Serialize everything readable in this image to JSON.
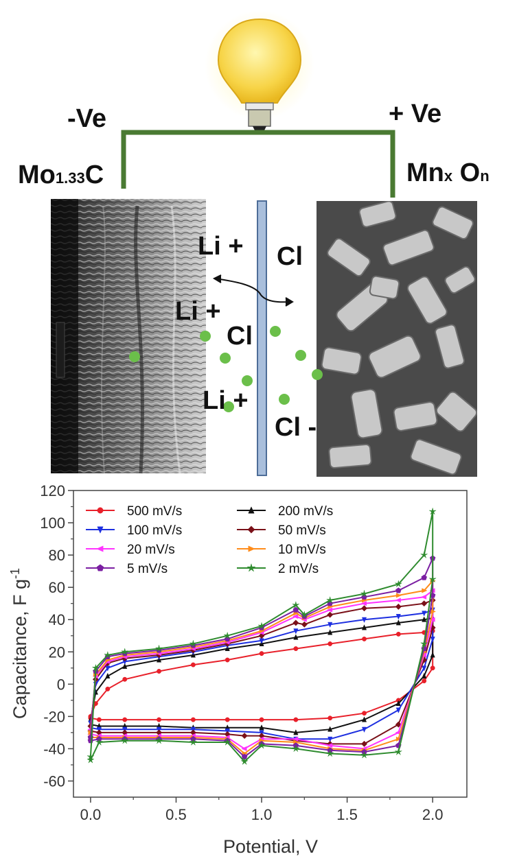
{
  "schematic": {
    "neg_terminal": "-Ve",
    "pos_terminal": "+ Ve",
    "neg_electrode": {
      "base": "Mo",
      "sub": "1.33",
      "tail": "C"
    },
    "pos_electrode": {
      "base": "Mn",
      "sub1": "x",
      "mid": " O",
      "sub2": "n"
    },
    "ions": [
      "Li +",
      "Li +",
      "Li +",
      "Cl",
      "Cl",
      "Cl -",
      "Cl -"
    ],
    "colors": {
      "wire": "#4a7a32",
      "ion": "#6bbf4a",
      "separator": "#a9bfdc"
    },
    "icons": [
      "light-bulb-icon",
      "double-arrow-icon"
    ]
  },
  "chart_data": {
    "type": "line",
    "xlabel": "Potential, V",
    "ylabel": {
      "text": "Capacitance, F g",
      "sup": "-1"
    },
    "xlim": [
      -0.1,
      2.2
    ],
    "ylim": [
      -70,
      120
    ],
    "xticks": [
      "0.0",
      "0.5",
      "1.0",
      "1.5",
      "2.0"
    ],
    "xtick_values": [
      0,
      0.5,
      1.0,
      1.5,
      2.0
    ],
    "yticks": [
      "-60",
      "-40",
      "-20",
      "0",
      "20",
      "40",
      "60",
      "80",
      "100",
      "120"
    ],
    "ytick_values": [
      -60,
      -40,
      -20,
      0,
      20,
      40,
      60,
      80,
      100,
      120
    ],
    "legend_position": "top-left",
    "series": [
      {
        "name": "500 mV/s",
        "color": "#e8202a",
        "marker": "circle",
        "upper": [
          [
            0,
            -20
          ],
          [
            0.03,
            -12
          ],
          [
            0.1,
            -3
          ],
          [
            0.2,
            3
          ],
          [
            0.4,
            8
          ],
          [
            0.6,
            12
          ],
          [
            0.8,
            15
          ],
          [
            1.0,
            19
          ],
          [
            1.2,
            22
          ],
          [
            1.4,
            25
          ],
          [
            1.6,
            28
          ],
          [
            1.8,
            31
          ],
          [
            1.95,
            32
          ],
          [
            2.0,
            33
          ]
        ],
        "lower": [
          [
            2.0,
            10
          ],
          [
            1.95,
            2
          ],
          [
            1.8,
            -10
          ],
          [
            1.6,
            -18
          ],
          [
            1.4,
            -21
          ],
          [
            1.2,
            -22
          ],
          [
            1.0,
            -22
          ],
          [
            0.8,
            -22
          ],
          [
            0.6,
            -22
          ],
          [
            0.4,
            -22
          ],
          [
            0.2,
            -22
          ],
          [
            0.05,
            -22
          ],
          [
            0,
            -21
          ]
        ]
      },
      {
        "name": "200 mV/s",
        "color": "#111111",
        "marker": "triangle-up",
        "upper": [
          [
            0,
            -22
          ],
          [
            0.03,
            -5
          ],
          [
            0.1,
            5
          ],
          [
            0.2,
            11
          ],
          [
            0.4,
            15
          ],
          [
            0.6,
            18
          ],
          [
            0.8,
            22
          ],
          [
            1.0,
            25
          ],
          [
            1.2,
            29
          ],
          [
            1.4,
            32
          ],
          [
            1.6,
            35
          ],
          [
            1.8,
            38
          ],
          [
            1.95,
            40
          ],
          [
            2.0,
            41
          ]
        ],
        "lower": [
          [
            2.0,
            18
          ],
          [
            1.95,
            5
          ],
          [
            1.8,
            -12
          ],
          [
            1.6,
            -22
          ],
          [
            1.4,
            -28
          ],
          [
            1.2,
            -30
          ],
          [
            1.0,
            -27
          ],
          [
            0.8,
            -27
          ],
          [
            0.6,
            -27
          ],
          [
            0.4,
            -26
          ],
          [
            0.2,
            -26
          ],
          [
            0.05,
            -26
          ],
          [
            0,
            -25
          ]
        ]
      },
      {
        "name": "100 mV/s",
        "color": "#1d2fe0",
        "marker": "triangle-down",
        "upper": [
          [
            0,
            -24
          ],
          [
            0.03,
            0
          ],
          [
            0.1,
            10
          ],
          [
            0.2,
            14
          ],
          [
            0.4,
            17
          ],
          [
            0.6,
            20
          ],
          [
            0.8,
            24
          ],
          [
            1.0,
            27
          ],
          [
            1.2,
            33
          ],
          [
            1.4,
            37
          ],
          [
            1.6,
            40
          ],
          [
            1.8,
            42
          ],
          [
            1.95,
            44
          ],
          [
            2.0,
            46
          ]
        ],
        "lower": [
          [
            2.0,
            28
          ],
          [
            1.95,
            10
          ],
          [
            1.8,
            -16
          ],
          [
            1.6,
            -28
          ],
          [
            1.4,
            -34
          ],
          [
            1.2,
            -34
          ],
          [
            1.0,
            -30
          ],
          [
            0.8,
            -29
          ],
          [
            0.6,
            -28
          ],
          [
            0.4,
            -28
          ],
          [
            0.2,
            -28
          ],
          [
            0.05,
            -28
          ],
          [
            0,
            -27
          ]
        ]
      },
      {
        "name": "50 mV/s",
        "color": "#7a1018",
        "marker": "diamond",
        "upper": [
          [
            0,
            -26
          ],
          [
            0.03,
            3
          ],
          [
            0.1,
            13
          ],
          [
            0.2,
            16
          ],
          [
            0.4,
            18
          ],
          [
            0.6,
            21
          ],
          [
            0.8,
            25
          ],
          [
            1.0,
            30
          ],
          [
            1.2,
            38
          ],
          [
            1.25,
            37
          ],
          [
            1.4,
            43
          ],
          [
            1.6,
            47
          ],
          [
            1.8,
            48
          ],
          [
            1.95,
            50
          ],
          [
            2.0,
            52
          ]
        ],
        "lower": [
          [
            2.0,
            35
          ],
          [
            1.95,
            15
          ],
          [
            1.8,
            -25
          ],
          [
            1.6,
            -37
          ],
          [
            1.4,
            -37
          ],
          [
            1.2,
            -35
          ],
          [
            1.0,
            -32
          ],
          [
            0.9,
            -32
          ],
          [
            0.8,
            -31
          ],
          [
            0.6,
            -30
          ],
          [
            0.4,
            -30
          ],
          [
            0.2,
            -30
          ],
          [
            0.05,
            -30
          ],
          [
            0,
            -29
          ]
        ]
      },
      {
        "name": "20 mV/s",
        "color": "#ff33ff",
        "marker": "triangle-left",
        "upper": [
          [
            0,
            -28
          ],
          [
            0.03,
            5
          ],
          [
            0.1,
            14
          ],
          [
            0.2,
            17
          ],
          [
            0.4,
            19
          ],
          [
            0.6,
            22
          ],
          [
            0.8,
            26
          ],
          [
            1.0,
            32
          ],
          [
            1.2,
            42
          ],
          [
            1.25,
            40
          ],
          [
            1.4,
            46
          ],
          [
            1.6,
            50
          ],
          [
            1.8,
            52
          ],
          [
            1.95,
            54
          ],
          [
            2.0,
            58
          ]
        ],
        "lower": [
          [
            2.0,
            40
          ],
          [
            1.95,
            18
          ],
          [
            1.8,
            -30
          ],
          [
            1.6,
            -40
          ],
          [
            1.4,
            -38
          ],
          [
            1.2,
            -34
          ],
          [
            1.0,
            -34
          ],
          [
            0.9,
            -40
          ],
          [
            0.8,
            -33
          ],
          [
            0.6,
            -32
          ],
          [
            0.4,
            -32
          ],
          [
            0.2,
            -32
          ],
          [
            0.05,
            -32
          ],
          [
            0,
            -31
          ]
        ]
      },
      {
        "name": "10 mV/s",
        "color": "#ff8c1a",
        "marker": "triangle-right",
        "upper": [
          [
            0,
            -30
          ],
          [
            0.03,
            6
          ],
          [
            0.1,
            15
          ],
          [
            0.2,
            18
          ],
          [
            0.4,
            20
          ],
          [
            0.6,
            23
          ],
          [
            0.8,
            27
          ],
          [
            1.0,
            33
          ],
          [
            1.2,
            44
          ],
          [
            1.25,
            41
          ],
          [
            1.4,
            48
          ],
          [
            1.6,
            52
          ],
          [
            1.8,
            55
          ],
          [
            1.95,
            58
          ],
          [
            2.0,
            64
          ]
        ],
        "lower": [
          [
            2.0,
            45
          ],
          [
            1.95,
            20
          ],
          [
            1.8,
            -34
          ],
          [
            1.6,
            -41
          ],
          [
            1.4,
            -40
          ],
          [
            1.2,
            -36
          ],
          [
            1.0,
            -35
          ],
          [
            0.9,
            -43
          ],
          [
            0.8,
            -34
          ],
          [
            0.6,
            -33
          ],
          [
            0.4,
            -33
          ],
          [
            0.2,
            -33
          ],
          [
            0.05,
            -33
          ],
          [
            0,
            -33
          ]
        ]
      },
      {
        "name": "5 mV/s",
        "color": "#7b1fa2",
        "marker": "pentagon",
        "upper": [
          [
            0,
            -33
          ],
          [
            0.03,
            8
          ],
          [
            0.1,
            17
          ],
          [
            0.2,
            19
          ],
          [
            0.4,
            21
          ],
          [
            0.6,
            24
          ],
          [
            0.8,
            28
          ],
          [
            1.0,
            35
          ],
          [
            1.2,
            46
          ],
          [
            1.25,
            42
          ],
          [
            1.4,
            50
          ],
          [
            1.6,
            54
          ],
          [
            1.8,
            58
          ],
          [
            1.95,
            66
          ],
          [
            2.0,
            78
          ]
        ],
        "lower": [
          [
            2.0,
            55
          ],
          [
            1.95,
            22
          ],
          [
            1.8,
            -38
          ],
          [
            1.6,
            -42
          ],
          [
            1.4,
            -41
          ],
          [
            1.2,
            -38
          ],
          [
            1.0,
            -37
          ],
          [
            0.9,
            -45
          ],
          [
            0.8,
            -35
          ],
          [
            0.6,
            -34
          ],
          [
            0.4,
            -34
          ],
          [
            0.2,
            -34
          ],
          [
            0.05,
            -34
          ],
          [
            0,
            -35
          ]
        ]
      },
      {
        "name": "2 mV/s",
        "color": "#2e8b2e",
        "marker": "star",
        "upper": [
          [
            0,
            -45
          ],
          [
            0.03,
            10
          ],
          [
            0.1,
            18
          ],
          [
            0.2,
            20
          ],
          [
            0.4,
            22
          ],
          [
            0.6,
            25
          ],
          [
            0.8,
            30
          ],
          [
            1.0,
            36
          ],
          [
            1.2,
            49
          ],
          [
            1.25,
            43
          ],
          [
            1.4,
            52
          ],
          [
            1.6,
            56
          ],
          [
            1.8,
            62
          ],
          [
            1.95,
            80
          ],
          [
            2.0,
            107
          ]
        ],
        "lower": [
          [
            2.0,
            65
          ],
          [
            1.95,
            25
          ],
          [
            1.8,
            -42
          ],
          [
            1.6,
            -44
          ],
          [
            1.4,
            -43
          ],
          [
            1.2,
            -40
          ],
          [
            1.0,
            -38
          ],
          [
            0.9,
            -48
          ],
          [
            0.8,
            -36
          ],
          [
            0.6,
            -36
          ],
          [
            0.4,
            -35
          ],
          [
            0.2,
            -35
          ],
          [
            0.05,
            -36
          ],
          [
            0,
            -47
          ]
        ]
      }
    ]
  }
}
